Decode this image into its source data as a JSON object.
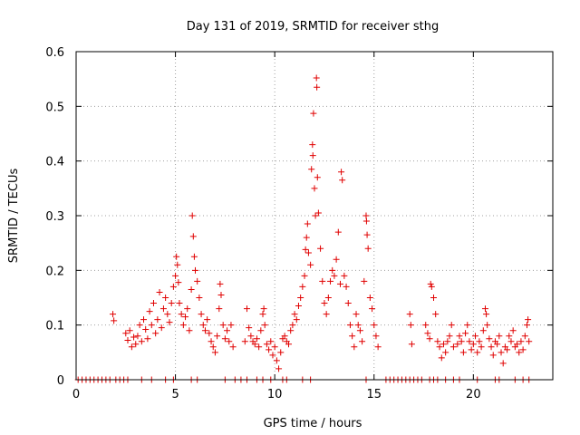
{
  "chart_data": {
    "type": "scatter",
    "title": "Day 131 of 2019, SRMTID for receiver sthg",
    "xlabel": "GPS time / hours",
    "ylabel": "SRMTID / TECUs",
    "xlim": [
      0,
      24
    ],
    "ylim": [
      0,
      0.6
    ],
    "xticks": [
      0,
      5,
      10,
      15,
      20
    ],
    "yticks": [
      0,
      0.1,
      0.2,
      0.3,
      0.4,
      0.5,
      0.6
    ],
    "xtick_labels": [
      "0",
      "5",
      "10",
      "15",
      "20"
    ],
    "ytick_labels": [
      "0",
      "0.1",
      "0.2",
      "0.3",
      "0.4",
      "0.5",
      "0.6"
    ],
    "grid": true,
    "marker": "+",
    "color": "#e00000",
    "series": [
      {
        "name": "SRMTID",
        "points": [
          [
            0.1,
            0
          ],
          [
            0.3,
            0
          ],
          [
            0.5,
            0
          ],
          [
            0.7,
            0
          ],
          [
            0.9,
            0
          ],
          [
            1.1,
            0
          ],
          [
            1.3,
            0
          ],
          [
            1.5,
            0
          ],
          [
            1.7,
            0
          ],
          [
            2.0,
            0
          ],
          [
            2.2,
            0
          ],
          [
            2.4,
            0
          ],
          [
            2.6,
            0
          ],
          [
            3.3,
            0
          ],
          [
            3.8,
            0
          ],
          [
            4.5,
            0
          ],
          [
            4.9,
            0
          ],
          [
            5.8,
            0
          ],
          [
            6.1,
            0
          ],
          [
            7.5,
            0
          ],
          [
            8.0,
            0
          ],
          [
            8.3,
            0
          ],
          [
            8.6,
            0
          ],
          [
            9.1,
            0
          ],
          [
            9.4,
            0
          ],
          [
            9.8,
            0
          ],
          [
            10.4,
            0
          ],
          [
            10.6,
            0
          ],
          [
            11.4,
            0
          ],
          [
            11.8,
            0
          ],
          [
            14.6,
            0
          ],
          [
            15.6,
            0
          ],
          [
            15.8,
            0
          ],
          [
            16.0,
            0
          ],
          [
            16.2,
            0
          ],
          [
            16.4,
            0
          ],
          [
            16.6,
            0
          ],
          [
            16.8,
            0
          ],
          [
            17.0,
            0
          ],
          [
            17.2,
            0
          ],
          [
            17.4,
            0
          ],
          [
            17.8,
            0
          ],
          [
            18.0,
            0
          ],
          [
            18.2,
            0
          ],
          [
            18.6,
            0
          ],
          [
            19.0,
            0
          ],
          [
            19.3,
            0
          ],
          [
            20.2,
            0
          ],
          [
            21.1,
            0
          ],
          [
            21.3,
            0
          ],
          [
            22.1,
            0
          ],
          [
            22.5,
            0
          ],
          [
            22.8,
            0
          ],
          [
            1.85,
            0.12
          ],
          [
            1.9,
            0.108
          ],
          [
            2.5,
            0.085
          ],
          [
            2.6,
            0.072
          ],
          [
            2.7,
            0.09
          ],
          [
            2.8,
            0.06
          ],
          [
            2.9,
            0.078
          ],
          [
            3.0,
            0.065
          ],
          [
            3.1,
            0.08
          ],
          [
            3.2,
            0.1
          ],
          [
            3.3,
            0.07
          ],
          [
            3.4,
            0.11
          ],
          [
            3.5,
            0.092
          ],
          [
            3.6,
            0.075
          ],
          [
            3.7,
            0.125
          ],
          [
            3.8,
            0.1
          ],
          [
            3.9,
            0.14
          ],
          [
            4.0,
            0.085
          ],
          [
            4.1,
            0.11
          ],
          [
            4.2,
            0.16
          ],
          [
            4.3,
            0.095
          ],
          [
            4.4,
            0.13
          ],
          [
            4.5,
            0.15
          ],
          [
            4.6,
            0.12
          ],
          [
            4.7,
            0.105
          ],
          [
            4.8,
            0.14
          ],
          [
            4.9,
            0.17
          ],
          [
            5.0,
            0.19
          ],
          [
            5.05,
            0.225
          ],
          [
            5.1,
            0.21
          ],
          [
            5.15,
            0.178
          ],
          [
            5.2,
            0.14
          ],
          [
            5.3,
            0.12
          ],
          [
            5.4,
            0.1
          ],
          [
            5.5,
            0.115
          ],
          [
            5.6,
            0.13
          ],
          [
            5.7,
            0.09
          ],
          [
            5.8,
            0.165
          ],
          [
            5.85,
            0.3
          ],
          [
            5.9,
            0.262
          ],
          [
            5.95,
            0.225
          ],
          [
            6.0,
            0.2
          ],
          [
            6.1,
            0.18
          ],
          [
            6.2,
            0.15
          ],
          [
            6.3,
            0.12
          ],
          [
            6.4,
            0.1
          ],
          [
            6.5,
            0.09
          ],
          [
            6.6,
            0.11
          ],
          [
            6.7,
            0.085
          ],
          [
            6.8,
            0.07
          ],
          [
            6.9,
            0.06
          ],
          [
            7.0,
            0.05
          ],
          [
            7.1,
            0.08
          ],
          [
            7.2,
            0.13
          ],
          [
            7.25,
            0.175
          ],
          [
            7.3,
            0.155
          ],
          [
            7.4,
            0.1
          ],
          [
            7.5,
            0.075
          ],
          [
            7.6,
            0.09
          ],
          [
            7.7,
            0.07
          ],
          [
            7.8,
            0.1
          ],
          [
            7.9,
            0.06
          ],
          [
            8.5,
            0.07
          ],
          [
            8.6,
            0.13
          ],
          [
            8.7,
            0.095
          ],
          [
            8.8,
            0.08
          ],
          [
            8.9,
            0.07
          ],
          [
            9.0,
            0.065
          ],
          [
            9.1,
            0.075
          ],
          [
            9.2,
            0.06
          ],
          [
            9.3,
            0.09
          ],
          [
            9.4,
            0.12
          ],
          [
            9.45,
            0.13
          ],
          [
            9.5,
            0.1
          ],
          [
            9.6,
            0.065
          ],
          [
            9.7,
            0.055
          ],
          [
            9.8,
            0.07
          ],
          [
            9.9,
            0.045
          ],
          [
            10.0,
            0.06
          ],
          [
            10.1,
            0.035
          ],
          [
            10.2,
            0.02
          ],
          [
            10.3,
            0.05
          ],
          [
            10.4,
            0.075
          ],
          [
            10.5,
            0.08
          ],
          [
            10.6,
            0.07
          ],
          [
            10.7,
            0.065
          ],
          [
            10.8,
            0.09
          ],
          [
            10.9,
            0.1
          ],
          [
            11.0,
            0.12
          ],
          [
            11.1,
            0.11
          ],
          [
            11.2,
            0.135
          ],
          [
            11.3,
            0.15
          ],
          [
            11.4,
            0.17
          ],
          [
            11.5,
            0.19
          ],
          [
            11.55,
            0.238
          ],
          [
            11.6,
            0.26
          ],
          [
            11.65,
            0.285
          ],
          [
            11.7,
            0.232
          ],
          [
            11.8,
            0.21
          ],
          [
            11.85,
            0.385
          ],
          [
            11.9,
            0.43
          ],
          [
            11.92,
            0.41
          ],
          [
            11.95,
            0.487
          ],
          [
            12.0,
            0.35
          ],
          [
            12.05,
            0.3
          ],
          [
            12.1,
            0.552
          ],
          [
            12.12,
            0.535
          ],
          [
            12.15,
            0.37
          ],
          [
            12.2,
            0.305
          ],
          [
            12.3,
            0.24
          ],
          [
            12.4,
            0.18
          ],
          [
            12.5,
            0.14
          ],
          [
            12.6,
            0.12
          ],
          [
            12.7,
            0.15
          ],
          [
            12.8,
            0.18
          ],
          [
            12.9,
            0.2
          ],
          [
            13.0,
            0.19
          ],
          [
            13.1,
            0.22
          ],
          [
            13.2,
            0.27
          ],
          [
            13.3,
            0.175
          ],
          [
            13.35,
            0.38
          ],
          [
            13.4,
            0.365
          ],
          [
            13.5,
            0.19
          ],
          [
            13.6,
            0.17
          ],
          [
            13.7,
            0.14
          ],
          [
            13.8,
            0.1
          ],
          [
            13.9,
            0.08
          ],
          [
            14.0,
            0.06
          ],
          [
            14.1,
            0.12
          ],
          [
            14.2,
            0.1
          ],
          [
            14.3,
            0.09
          ],
          [
            14.4,
            0.07
          ],
          [
            14.5,
            0.18
          ],
          [
            14.6,
            0.3
          ],
          [
            14.62,
            0.29
          ],
          [
            14.65,
            0.265
          ],
          [
            14.7,
            0.24
          ],
          [
            14.8,
            0.15
          ],
          [
            14.9,
            0.13
          ],
          [
            15.0,
            0.1
          ],
          [
            15.1,
            0.08
          ],
          [
            15.2,
            0.06
          ],
          [
            16.8,
            0.12
          ],
          [
            16.85,
            0.1
          ],
          [
            16.9,
            0.065
          ],
          [
            17.6,
            0.1
          ],
          [
            17.7,
            0.085
          ],
          [
            17.8,
            0.075
          ],
          [
            17.85,
            0.175
          ],
          [
            17.9,
            0.17
          ],
          [
            18.0,
            0.15
          ],
          [
            18.1,
            0.12
          ],
          [
            18.2,
            0.07
          ],
          [
            18.3,
            0.06
          ],
          [
            18.4,
            0.04
          ],
          [
            18.5,
            0.065
          ],
          [
            18.6,
            0.05
          ],
          [
            18.7,
            0.07
          ],
          [
            18.8,
            0.08
          ],
          [
            18.9,
            0.1
          ],
          [
            19.0,
            0.06
          ],
          [
            19.2,
            0.065
          ],
          [
            19.3,
            0.08
          ],
          [
            19.4,
            0.07
          ],
          [
            19.5,
            0.05
          ],
          [
            19.6,
            0.085
          ],
          [
            19.7,
            0.1
          ],
          [
            19.8,
            0.07
          ],
          [
            19.9,
            0.055
          ],
          [
            20.0,
            0.065
          ],
          [
            20.1,
            0.08
          ],
          [
            20.2,
            0.05
          ],
          [
            20.3,
            0.07
          ],
          [
            20.4,
            0.06
          ],
          [
            20.5,
            0.09
          ],
          [
            20.6,
            0.13
          ],
          [
            20.65,
            0.12
          ],
          [
            20.7,
            0.1
          ],
          [
            20.8,
            0.075
          ],
          [
            20.9,
            0.06
          ],
          [
            21.0,
            0.045
          ],
          [
            21.1,
            0.07
          ],
          [
            21.2,
            0.065
          ],
          [
            21.3,
            0.08
          ],
          [
            21.4,
            0.05
          ],
          [
            21.5,
            0.03
          ],
          [
            21.6,
            0.06
          ],
          [
            21.7,
            0.055
          ],
          [
            21.8,
            0.08
          ],
          [
            21.9,
            0.07
          ],
          [
            22.0,
            0.09
          ],
          [
            22.1,
            0.06
          ],
          [
            22.2,
            0.065
          ],
          [
            22.3,
            0.05
          ],
          [
            22.4,
            0.07
          ],
          [
            22.5,
            0.055
          ],
          [
            22.6,
            0.08
          ],
          [
            22.7,
            0.1
          ],
          [
            22.75,
            0.11
          ],
          [
            22.8,
            0.07
          ]
        ]
      }
    ]
  }
}
